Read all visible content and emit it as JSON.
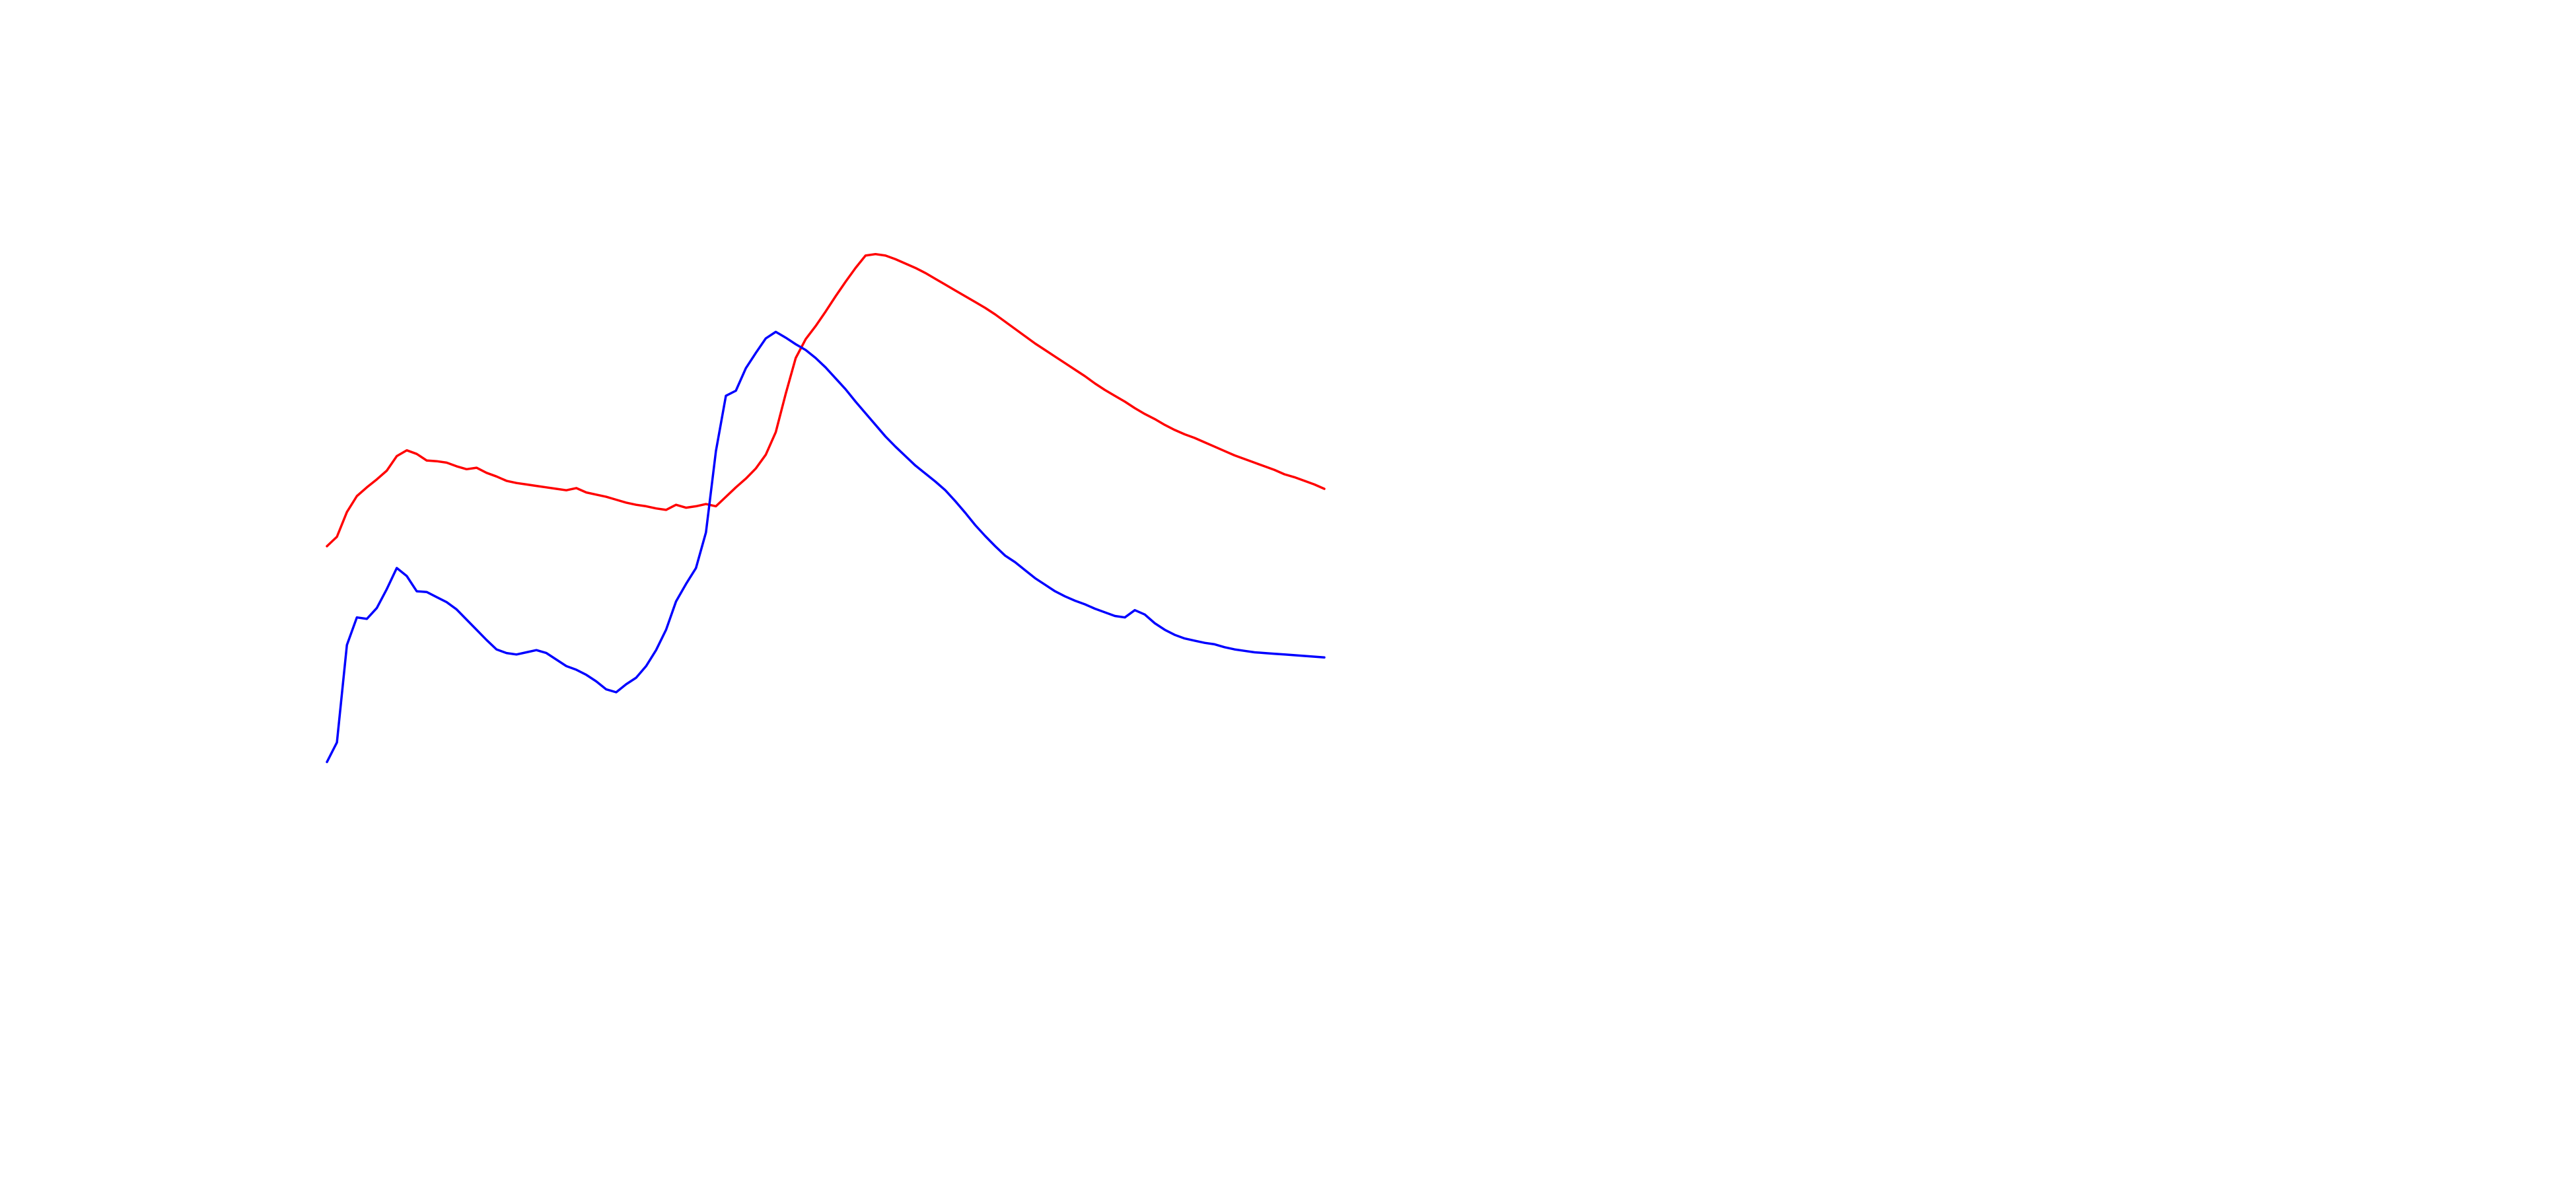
{
  "chart_data": {
    "type": "line",
    "title": "",
    "xlabel": "",
    "ylabel": "",
    "grid": false,
    "legend": "none",
    "xlim": [
      0,
      100
    ],
    "ylim": [
      0,
      100
    ],
    "series": [
      {
        "color": "#ff0000",
        "x": [
          0,
          1,
          2,
          3,
          4,
          5,
          6,
          7,
          8,
          9,
          10,
          11,
          12,
          13,
          14,
          15,
          16,
          17,
          18,
          19,
          20,
          21,
          22,
          23,
          24,
          25,
          26,
          27,
          28,
          29,
          30,
          31,
          32,
          33,
          34,
          35,
          36,
          37,
          38,
          39,
          40,
          41,
          42,
          43,
          44,
          45,
          46,
          47,
          48,
          49,
          50,
          51,
          52,
          53,
          54,
          55,
          56,
          57,
          58,
          59,
          60,
          61,
          62,
          63,
          64,
          65,
          66,
          67,
          68,
          69,
          70,
          71,
          72,
          73,
          74,
          75,
          76,
          77,
          78,
          79,
          80,
          81,
          82,
          83,
          84,
          85,
          86,
          87,
          88,
          89,
          90,
          91,
          92,
          93,
          94,
          95,
          96,
          97,
          98,
          99,
          100
        ],
        "y": [
          52.1,
          53.4,
          56.8,
          59.0,
          60.2,
          61.3,
          62.5,
          64.5,
          65.3,
          64.8,
          63.9,
          63.8,
          63.6,
          63.1,
          62.7,
          62.9,
          62.2,
          61.7,
          61.1,
          60.8,
          60.6,
          60.4,
          60.2,
          60.0,
          59.8,
          60.1,
          59.5,
          59.2,
          58.9,
          58.5,
          58.1,
          57.8,
          57.6,
          57.3,
          57.1,
          57.8,
          57.4,
          57.6,
          57.9,
          57.6,
          58.9,
          60.2,
          61.4,
          62.8,
          64.7,
          67.8,
          73.1,
          78.0,
          80.6,
          82.4,
          84.4,
          86.5,
          88.5,
          90.4,
          92.1,
          92.3,
          92.1,
          91.6,
          91.0,
          90.4,
          89.7,
          88.9,
          88.1,
          87.3,
          86.5,
          85.7,
          84.9,
          84.0,
          83.0,
          82.0,
          81.0,
          80.0,
          79.1,
          78.2,
          77.3,
          76.4,
          75.5,
          74.5,
          73.6,
          72.8,
          72.0,
          71.1,
          70.3,
          69.6,
          68.8,
          68.1,
          67.5,
          67.0,
          66.4,
          65.8,
          65.2,
          64.6,
          64.1,
          63.6,
          63.1,
          62.6,
          62.0,
          61.6,
          61.1,
          60.6,
          60.0
        ]
      },
      {
        "color": "#0000ff",
        "x": [
          0,
          1,
          2,
          3,
          4,
          5,
          6,
          7,
          8,
          9,
          10,
          11,
          12,
          13,
          14,
          15,
          16,
          17,
          18,
          19,
          20,
          21,
          22,
          23,
          24,
          25,
          26,
          27,
          28,
          29,
          30,
          31,
          32,
          33,
          34,
          35,
          36,
          37,
          38,
          39,
          40,
          41,
          42,
          43,
          44,
          45,
          46,
          47,
          48,
          49,
          50,
          51,
          52,
          53,
          54,
          55,
          56,
          57,
          58,
          59,
          60,
          61,
          62,
          63,
          64,
          65,
          66,
          67,
          68,
          69,
          70,
          71,
          72,
          73,
          74,
          75,
          76,
          77,
          78,
          79,
          80,
          81,
          82,
          83,
          84,
          85,
          86,
          87,
          88,
          89,
          90,
          91,
          92,
          93,
          94,
          95,
          96,
          97,
          98,
          99,
          100
        ],
        "y": [
          22.4,
          25.1,
          38.5,
          42.3,
          42.1,
          43.6,
          46.2,
          49.1,
          48.0,
          45.9,
          45.8,
          45.1,
          44.4,
          43.4,
          42.0,
          40.6,
          39.2,
          37.9,
          37.4,
          37.2,
          37.5,
          37.8,
          37.4,
          36.5,
          35.6,
          35.1,
          34.4,
          33.5,
          32.4,
          32.0,
          33.1,
          34.0,
          35.6,
          37.8,
          40.6,
          44.5,
          46.9,
          49.1,
          54.0,
          65.2,
          72.8,
          73.5,
          76.6,
          78.7,
          80.7,
          81.6,
          80.8,
          79.9,
          79.1,
          78.0,
          76.7,
          75.2,
          73.7,
          72.0,
          70.4,
          68.8,
          67.2,
          65.8,
          64.5,
          63.2,
          62.1,
          61.0,
          59.8,
          58.3,
          56.7,
          55.0,
          53.5,
          52.1,
          50.8,
          49.9,
          48.8,
          47.7,
          46.8,
          45.9,
          45.2,
          44.6,
          44.1,
          43.5,
          43.0,
          42.5,
          42.3,
          43.3,
          42.7,
          41.5,
          40.6,
          39.9,
          39.4,
          39.1,
          38.8,
          38.6,
          38.2,
          37.9,
          37.7,
          37.5,
          37.4,
          37.3,
          37.2,
          37.1,
          37.0,
          36.9,
          36.8
        ]
      }
    ]
  }
}
